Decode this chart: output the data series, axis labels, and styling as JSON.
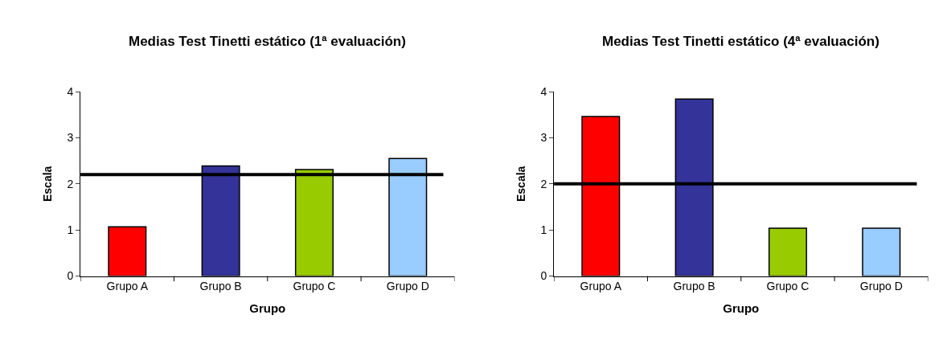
{
  "chart_data": [
    {
      "type": "bar",
      "title": "Medias Test Tinetti estático (1ª evaluación)",
      "xlabel": "Grupo",
      "ylabel": "Escala",
      "categories": [
        "Grupo A",
        "Grupo B",
        "Grupo C",
        "Grupo D"
      ],
      "values": [
        1.07,
        2.39,
        2.31,
        2.55
      ],
      "colors": [
        "#ff0000",
        "#333399",
        "#99cc00",
        "#99ccff"
      ],
      "ylim": [
        0,
        4
      ],
      "yticks": [
        0,
        1,
        2,
        3,
        4
      ],
      "ref_lines": [
        {
          "axis": "y",
          "value": 2.2,
          "color": "#000000"
        }
      ]
    },
    {
      "type": "bar",
      "title": "Medias Test Tinetti estático (4ª evaluación)",
      "xlabel": "Grupo",
      "ylabel": "Escala",
      "categories": [
        "Grupo A",
        "Grupo B",
        "Grupo C",
        "Grupo D"
      ],
      "values": [
        3.46,
        3.84,
        1.04,
        1.04
      ],
      "colors": [
        "#ff0000",
        "#333399",
        "#99cc00",
        "#99ccff"
      ],
      "ylim": [
        0,
        4
      ],
      "yticks": [
        0,
        1,
        2,
        3,
        4
      ],
      "ref_lines": [
        {
          "axis": "y",
          "value": 2.0,
          "color": "#000000"
        }
      ]
    }
  ]
}
